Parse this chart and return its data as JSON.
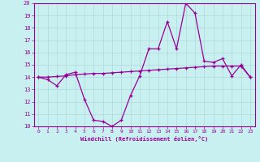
{
  "xlabel": "Windchill (Refroidissement éolien,°C)",
  "background_color": "#c8f0f0",
  "grid_color": "#b0d8d8",
  "line_color": "#990099",
  "x_hours": [
    0,
    1,
    2,
    3,
    4,
    5,
    6,
    7,
    8,
    9,
    10,
    11,
    12,
    13,
    14,
    15,
    16,
    17,
    18,
    19,
    20,
    21,
    22,
    23
  ],
  "windchill_values": [
    14.0,
    13.8,
    13.3,
    14.2,
    14.4,
    12.2,
    10.5,
    10.4,
    10.0,
    10.5,
    12.5,
    14.1,
    16.3,
    16.3,
    18.5,
    16.3,
    20.0,
    19.2,
    15.3,
    15.2,
    15.5,
    14.1,
    15.0,
    14.0
  ],
  "temp_values": [
    14.0,
    14.0,
    14.05,
    14.1,
    14.2,
    14.25,
    14.3,
    14.3,
    14.35,
    14.4,
    14.45,
    14.5,
    14.55,
    14.6,
    14.65,
    14.7,
    14.75,
    14.8,
    14.85,
    14.9,
    14.9,
    14.9,
    14.9,
    14.0
  ],
  "ylim": [
    10,
    20
  ],
  "yticks": [
    10,
    11,
    12,
    13,
    14,
    15,
    16,
    17,
    18,
    19,
    20
  ],
  "xticks": [
    0,
    1,
    2,
    3,
    4,
    5,
    6,
    7,
    8,
    9,
    10,
    11,
    12,
    13,
    14,
    15,
    16,
    17,
    18,
    19,
    20,
    21,
    22,
    23
  ],
  "figwidth": 3.2,
  "figheight": 2.0,
  "dpi": 100
}
